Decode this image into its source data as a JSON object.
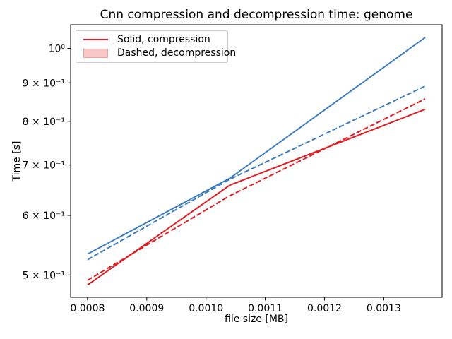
{
  "chart_data": {
    "type": "line",
    "title": "Cnn compression and decompression time: genome",
    "xlabel": "file size [MB]",
    "ylabel": "Time [s]",
    "x_scale": "linear",
    "y_scale": "log",
    "xlim": [
      0.0007715,
      0.0013985
    ],
    "ylim": [
      0.467,
      1.075
    ],
    "grid": false,
    "x_ticks": {
      "values": [
        0.0008,
        0.0009,
        0.001,
        0.0011,
        0.0012,
        0.0013
      ],
      "labels": [
        "0.0008",
        "0.0009",
        "0.0010",
        "0.0011",
        "0.0012",
        "0.0013"
      ]
    },
    "y_ticks": {
      "values": [
        1.0,
        0.9,
        0.8,
        0.7,
        0.6,
        0.5
      ],
      "labels": [
        "10⁰",
        "9 × 10⁻¹",
        "8 × 10⁻¹",
        "7 × 10⁻¹",
        "6 × 10⁻¹",
        "5 × 10⁻¹"
      ]
    },
    "x": [
      0.0008,
      0.00104,
      0.00137
    ],
    "series": [
      {
        "name": "blue-solid-compression",
        "style": "solid",
        "color": "#3c7dbe",
        "values": [
          0.533,
          0.672,
          1.034
        ]
      },
      {
        "name": "blue-dashed-decompression",
        "style": "dashed",
        "color": "#3c7dbe",
        "values": [
          0.524,
          0.67,
          0.891
        ]
      },
      {
        "name": "red-solid-compression",
        "style": "solid",
        "color": "#e11e23",
        "values": [
          0.485,
          0.658,
          0.83
        ]
      },
      {
        "name": "red-dashed-decompression",
        "style": "dashed",
        "color": "#e11e23",
        "values": [
          0.492,
          0.637,
          0.857
        ]
      }
    ],
    "legend": {
      "position": "upper left",
      "entries": [
        {
          "label": "Solid, compression",
          "swatch": "red-line",
          "color": "#e11e23"
        },
        {
          "label": "Dashed, decompression",
          "swatch": "pink-patch",
          "fill": "#f9c6c6",
          "edge": "#eba3a3"
        }
      ]
    }
  }
}
